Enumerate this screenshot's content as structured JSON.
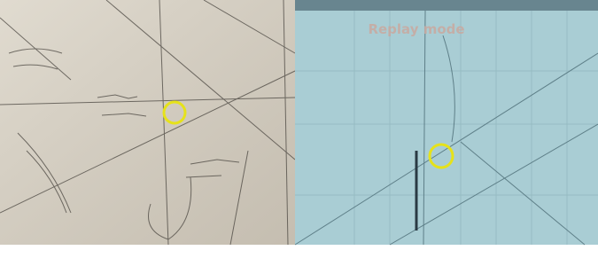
{
  "right_panel": {
    "overlay_text": "Replay mode"
  }
}
